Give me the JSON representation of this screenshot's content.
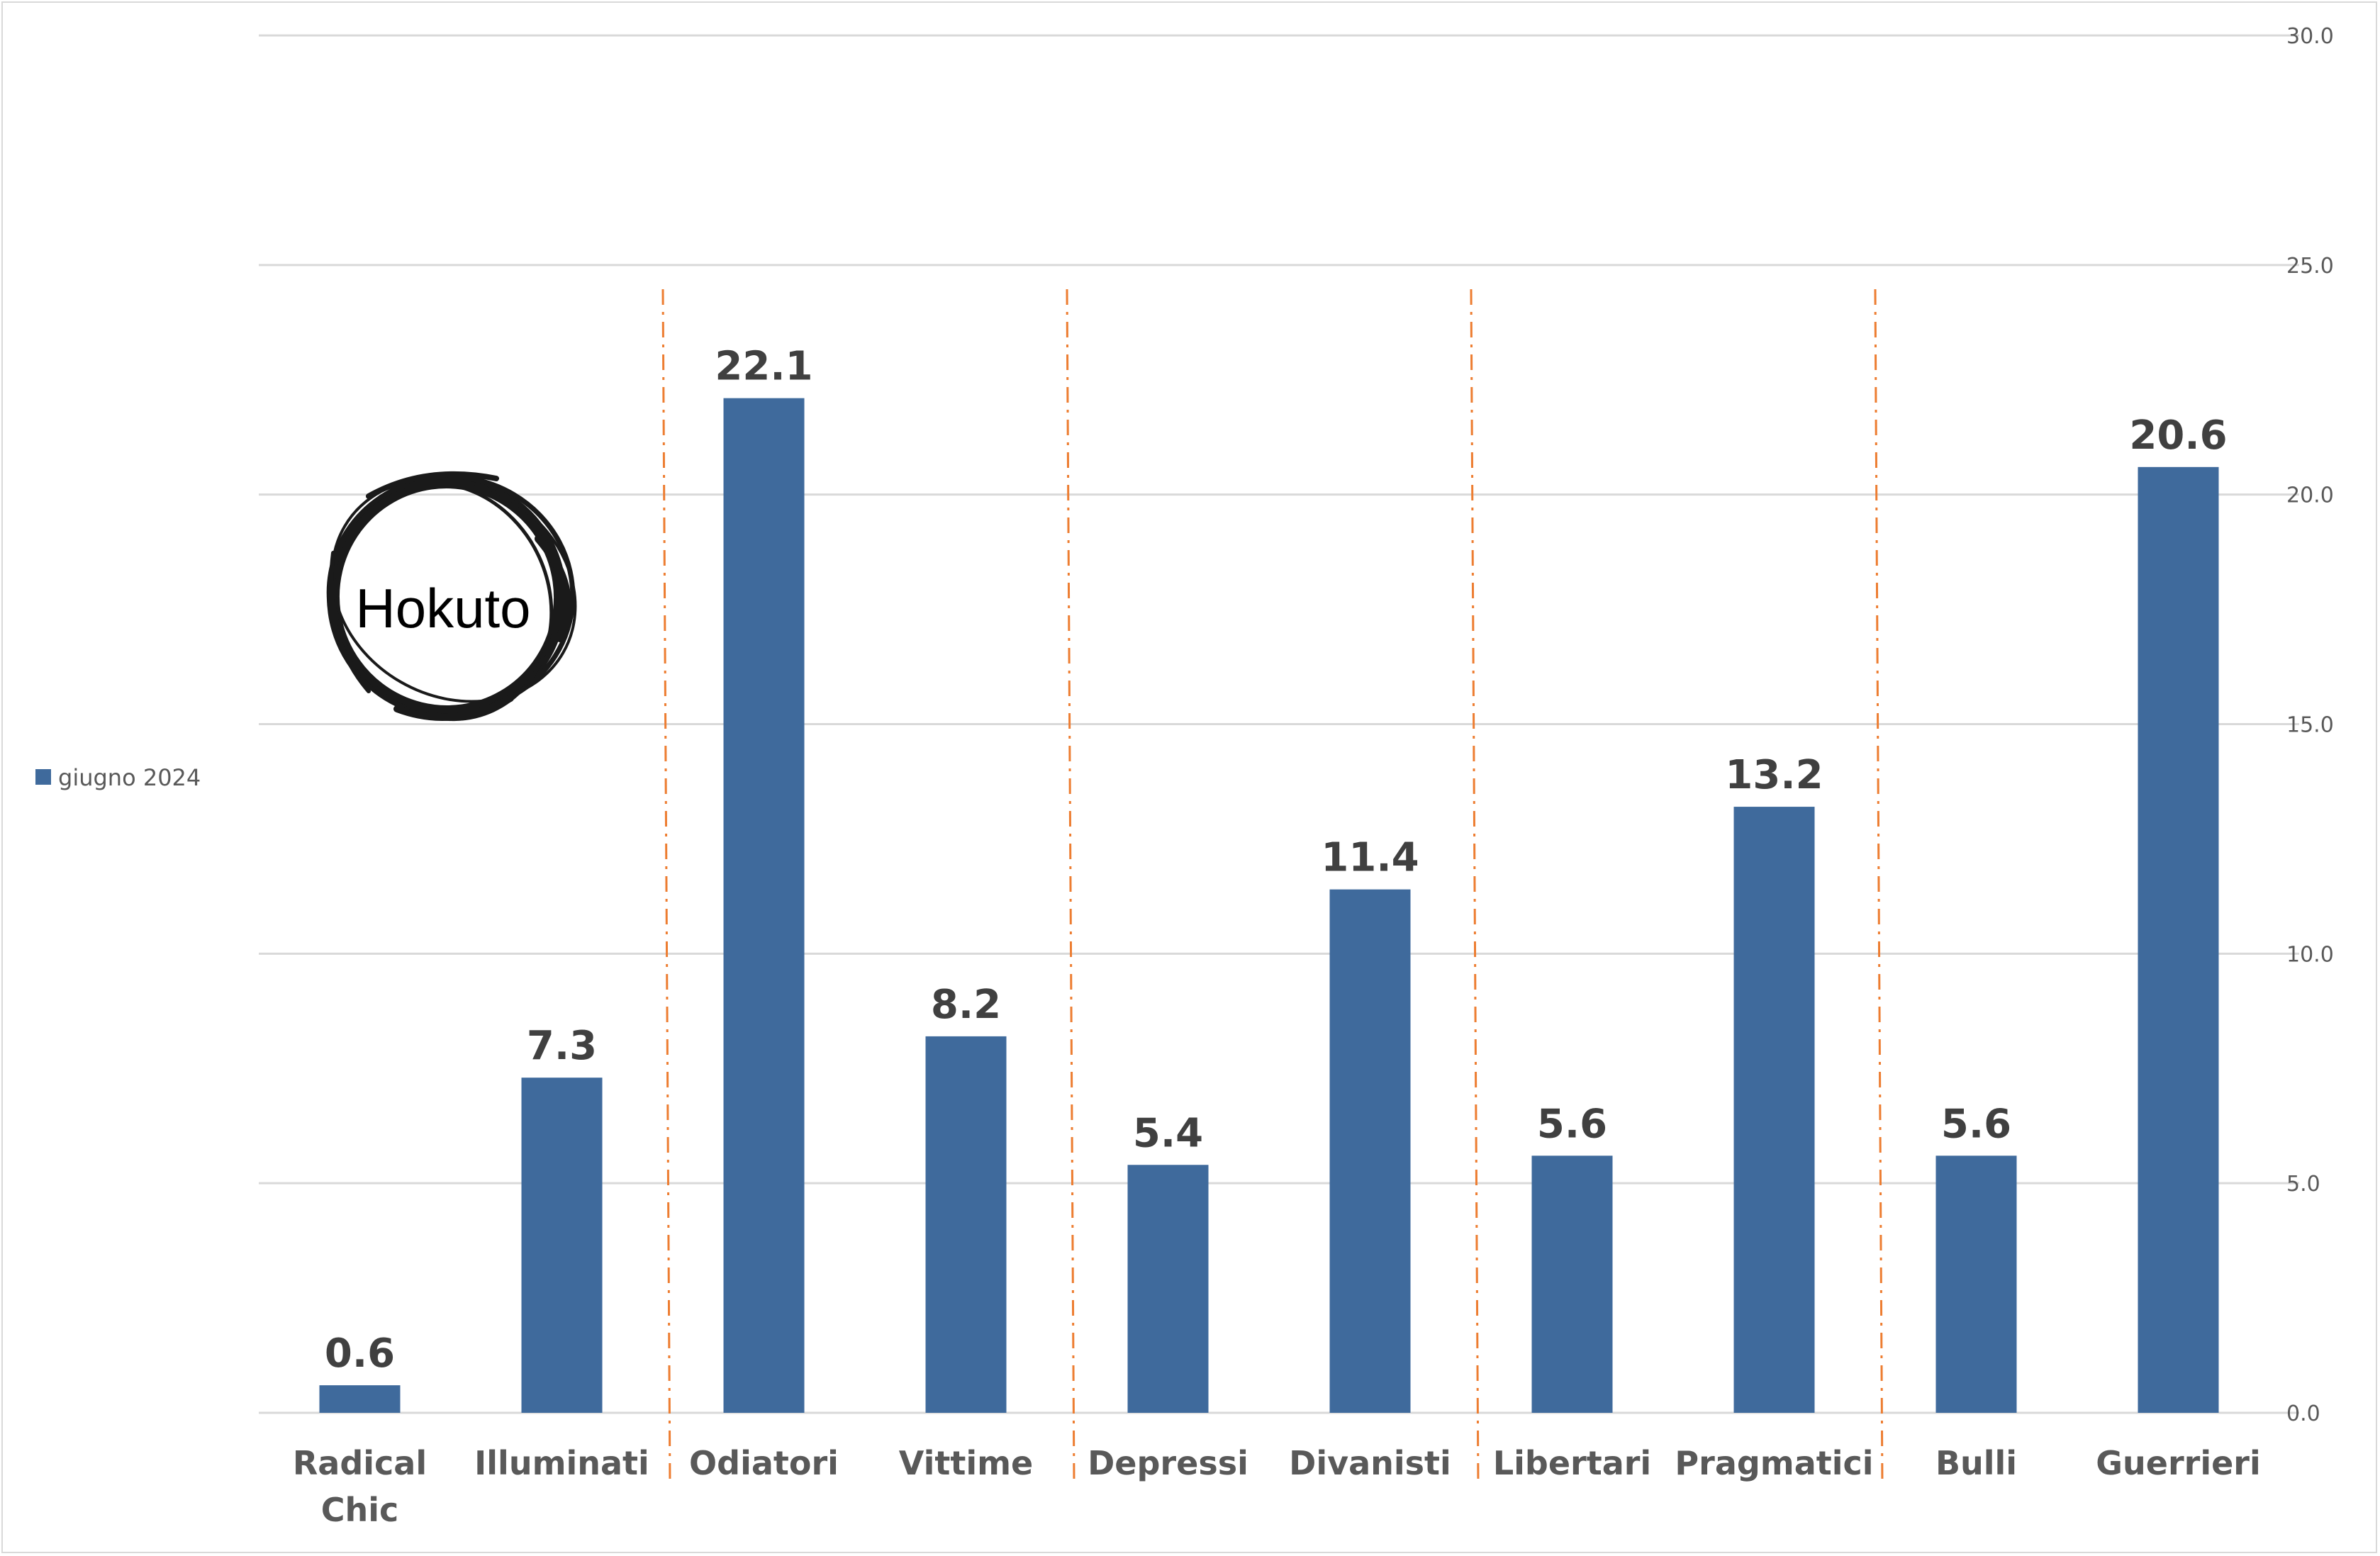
{
  "chart_data": {
    "type": "bar",
    "categories": [
      [
        "Radical",
        "Chic"
      ],
      [
        "Illuminati"
      ],
      [
        "Odiatori"
      ],
      [
        "Vittime"
      ],
      [
        "Depressi"
      ],
      [
        "Divanisti"
      ],
      [
        "Libertari"
      ],
      [
        "Pragmatici"
      ],
      [
        "Bulli"
      ],
      [
        "Guerrieri"
      ]
    ],
    "series": [
      {
        "name": "giugno 2024",
        "values": [
          0.6,
          7.3,
          22.1,
          8.2,
          5.4,
          11.4,
          5.6,
          13.2,
          5.6,
          20.6
        ],
        "labels": [
          "0.6",
          "7.3",
          "22.1",
          "8.2",
          "5.4",
          "11.4",
          "5.6",
          "13.2",
          "5.6",
          "20.6"
        ]
      }
    ],
    "ylim": [
      0,
      30
    ],
    "yticks": [
      "0.0",
      "5.0",
      "10.0",
      "15.0",
      "20.0",
      "25.0",
      "30.0"
    ],
    "y_axis_side": "right",
    "grid": true,
    "legend_placement": "left",
    "group_separators_after_category": [
      1,
      3,
      5,
      7
    ],
    "colors": {
      "bar": "#3f6a9c",
      "grid": "#d9d9d9",
      "separator": "#ed7d31"
    }
  },
  "logo": {
    "text": "Hokuto"
  }
}
